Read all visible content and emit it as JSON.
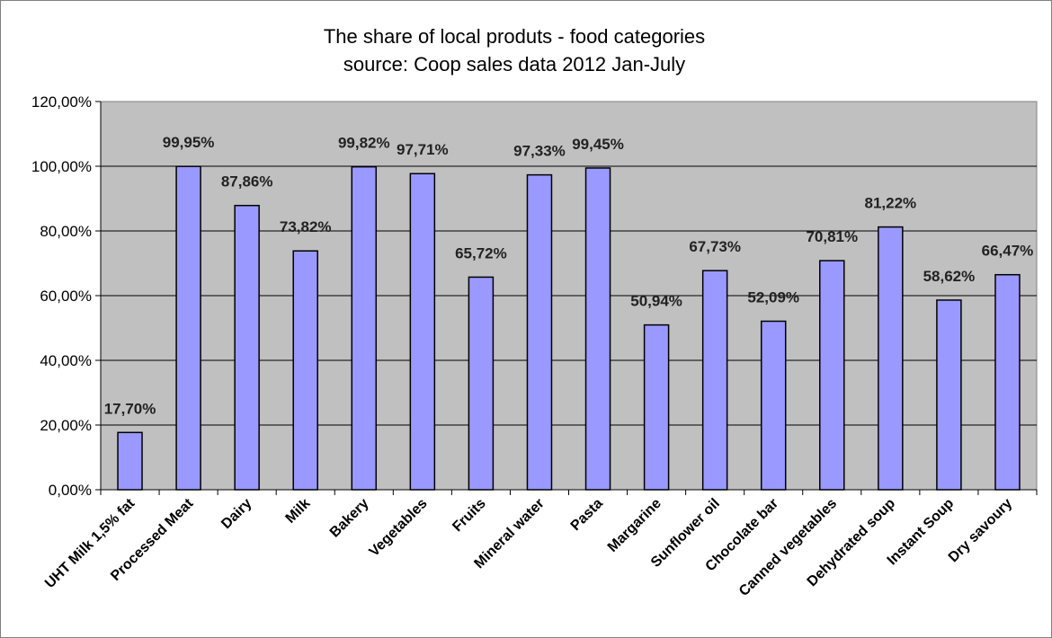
{
  "chart_data": {
    "type": "bar",
    "title": "The share of local produts - food categories",
    "subtitle": "source: Coop sales data 2012 Jan-July",
    "xlabel": "",
    "ylabel": "",
    "ylim": [
      0,
      120
    ],
    "y_ticks": [
      "0,00%",
      "20,00%",
      "40,00%",
      "60,00%",
      "80,00%",
      "100,00%",
      "120,00%"
    ],
    "grid": true,
    "legend": "none",
    "bar_color": "#9999ff",
    "plot_background": "#c0c0c0",
    "categories": [
      "UHT Milk 1,5% fat",
      "Processed Meat",
      "Dairy",
      "Milk",
      "Bakery",
      "Vegetables",
      "Fruits",
      "Mineral water",
      "Pasta",
      "Margarine",
      "Sunflower oil",
      "Chocolate bar",
      "Canned vegetables",
      "Dehydrated soup",
      "Instant Soup",
      "Dry savoury"
    ],
    "values": [
      17.7,
      99.95,
      87.86,
      73.82,
      99.82,
      97.71,
      65.72,
      97.33,
      99.45,
      50.94,
      67.73,
      52.09,
      70.81,
      81.22,
      58.62,
      66.47
    ],
    "data_labels": [
      "17,70%",
      "99,95%",
      "87,86%",
      "73,82%",
      "99,82%",
      "97,71%",
      "65,72%",
      "97,33%",
      "99,45%",
      "50,94%",
      "67,73%",
      "52,09%",
      "70,81%",
      "81,22%",
      "58,62%",
      "66,47%"
    ]
  }
}
